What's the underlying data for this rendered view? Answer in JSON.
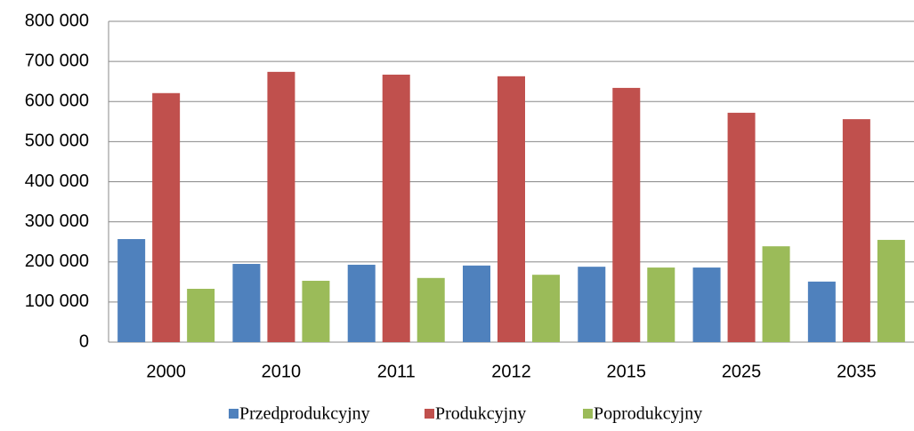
{
  "chart_data": {
    "type": "bar",
    "categories": [
      "2000",
      "2010",
      "2011",
      "2012",
      "2015",
      "2025",
      "2035"
    ],
    "series": [
      {
        "name": "Przedprodukcyjny",
        "color": "#4f81bd",
        "values": [
          257000,
          195000,
          193000,
          191000,
          188000,
          186000,
          151000
        ]
      },
      {
        "name": "Produkcyjny",
        "color": "#c0504d",
        "values": [
          621000,
          674000,
          667000,
          663000,
          634000,
          572000,
          556000
        ]
      },
      {
        "name": "Poprodukcyjny",
        "color": "#9bbb59",
        "values": [
          133000,
          153000,
          160000,
          168000,
          186000,
          239000,
          255000
        ]
      }
    ],
    "ylim": [
      0,
      800000
    ],
    "yticks": [
      0,
      {
        "value": 100000,
        "label": "100 000"
      },
      {
        "value": 200000,
        "label": "200 000"
      },
      {
        "value": 300000,
        "label": "300 000"
      },
      {
        "value": 400000,
        "label": "400 000"
      },
      {
        "value": 500000,
        "label": "500 000"
      },
      {
        "value": 600000,
        "label": "600 000"
      },
      {
        "value": 700000,
        "label": "700 000"
      },
      {
        "value": 800000,
        "label": "800 000"
      }
    ],
    "grid": true,
    "legend": "bottom"
  }
}
